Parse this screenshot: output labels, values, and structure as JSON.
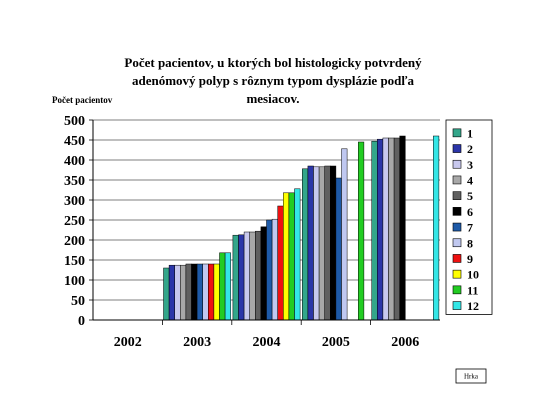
{
  "chart_data": {
    "type": "bar",
    "title_lines": [
      "Počet pacientov, u ktorých bol histologicky potvrdený",
      "adenómový polyp s rôznym typom dysplázie podľa",
      "mesiacov."
    ],
    "ylabel": "Počet pacientov",
    "xlabel": "",
    "ylim": [
      0,
      500
    ],
    "yticks": [
      0,
      50,
      100,
      150,
      200,
      250,
      300,
      350,
      400,
      450,
      500
    ],
    "categories": [
      "2002",
      "2003",
      "2004",
      "2005",
      "2006"
    ],
    "grid": true,
    "legend_position": "right",
    "series": [
      {
        "name": "1",
        "color": "#33a68a",
        "values": [
          null,
          130,
          212,
          378,
          447
        ]
      },
      {
        "name": "2",
        "color": "#2b35a8",
        "values": [
          null,
          137,
          213,
          385,
          452
        ]
      },
      {
        "name": "3",
        "color": "#c8c8ee",
        "values": [
          null,
          137,
          220,
          383,
          455
        ]
      },
      {
        "name": "4",
        "color": "#a8a8a8",
        "values": [
          null,
          137,
          220,
          383,
          455
        ]
      },
      {
        "name": "5",
        "color": "#606060",
        "values": [
          null,
          140,
          222,
          385,
          455
        ]
      },
      {
        "name": "6",
        "color": "#000000",
        "values": [
          null,
          140,
          233,
          385,
          460
        ]
      },
      {
        "name": "7",
        "color": "#1e5aa8",
        "values": [
          null,
          140,
          250,
          355,
          null
        ]
      },
      {
        "name": "8",
        "color": "#c0c8f0",
        "values": [
          null,
          140,
          252,
          428,
          null
        ]
      },
      {
        "name": "9",
        "color": "#ee1111",
        "values": [
          null,
          140,
          285,
          null,
          null
        ]
      },
      {
        "name": "10",
        "color": "#ffff00",
        "values": [
          null,
          140,
          318,
          null,
          null
        ]
      },
      {
        "name": "11",
        "color": "#22cc22",
        "values": [
          null,
          168,
          318,
          445,
          null
        ]
      },
      {
        "name": "12",
        "color": "#33e6e6",
        "values": [
          null,
          168,
          328,
          null,
          460
        ]
      }
    ]
  },
  "footnote": "Hrka"
}
